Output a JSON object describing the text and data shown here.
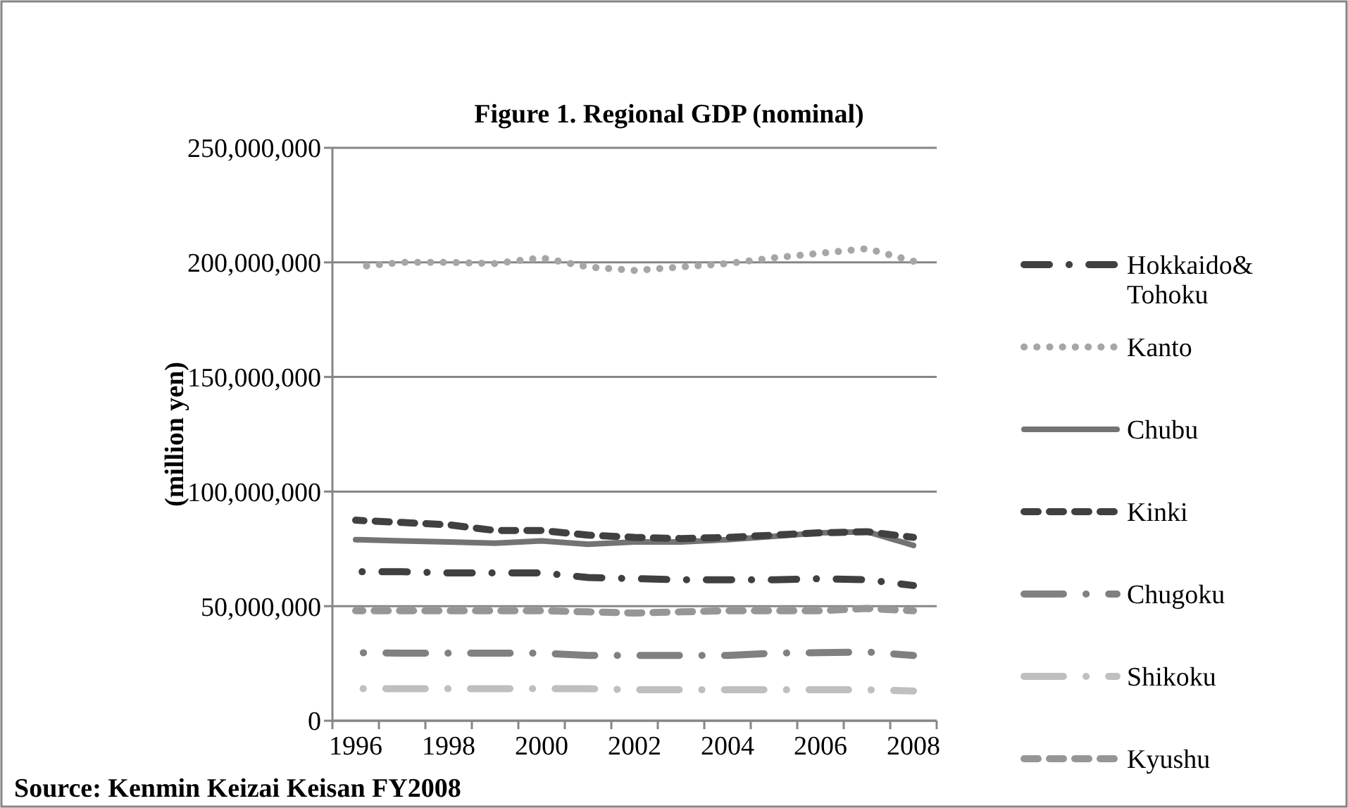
{
  "chart_data": {
    "type": "line",
    "title": "Figure 1. Regional GDP (nominal)",
    "ylabel": "(million yen)",
    "annotations": [
      "Source: Kenmin Keizai Keisan FY2008"
    ],
    "categories": [
      "1996",
      null,
      "1998",
      null,
      "2000",
      null,
      "2002",
      null,
      "2004",
      null,
      "2006",
      null,
      "2008"
    ],
    "ylim": [
      0,
      250000000
    ],
    "yticks": [
      0,
      {
        "value": 50000000,
        "label": "50,000,000"
      },
      {
        "value": 100000000,
        "label": "100,000,000"
      },
      {
        "value": 150000000,
        "label": "150,000,000"
      },
      {
        "value": 200000000,
        "label": "200,000,000"
      },
      {
        "value": 250000000,
        "label": "250,000,000"
      }
    ],
    "grid": "y",
    "legend": "right",
    "marker": "none",
    "series": [
      {
        "name": "Hokkaido& Tohoku",
        "color": "#404040",
        "line_style": "dashdot",
        "values": [
          65000000,
          65000000,
          64500000,
          64500000,
          64500000,
          62500000,
          62000000,
          61500000,
          61500000,
          61500000,
          62000000,
          61500000,
          59000000
        ]
      },
      {
        "name": "Kanto",
        "color": "#a6a6a6",
        "line_style": "dotted",
        "values": [
          198000000,
          200000000,
          200000000,
          199500000,
          202000000,
          198000000,
          196500000,
          198000000,
          199500000,
          202000000,
          204000000,
          206000000,
          200500000
        ]
      },
      {
        "name": "Chubu",
        "color": "#737373",
        "line_style": "solid",
        "values": [
          79000000,
          78500000,
          78000000,
          77500000,
          78500000,
          77000000,
          78000000,
          78000000,
          79000000,
          80500000,
          82000000,
          82500000,
          76500000
        ]
      },
      {
        "name": "Kinki",
        "color": "#404040",
        "line_style": "dashed",
        "values": [
          87500000,
          86500000,
          85500000,
          83000000,
          83000000,
          81000000,
          80000000,
          79500000,
          80000000,
          81000000,
          82000000,
          82500000,
          80000000
        ]
      },
      {
        "name": "Chugoku",
        "color": "#808080",
        "line_style": "longdashdot",
        "values": [
          29700000,
          29500000,
          29500000,
          29500000,
          29500000,
          28500000,
          28500000,
          28500000,
          28500000,
          29500000,
          29700000,
          30000000,
          28500000
        ]
      },
      {
        "name": "Shikoku",
        "color": "#bfbfbf",
        "line_style": "longdashdot",
        "values": [
          14000000,
          14000000,
          14000000,
          14000000,
          14000000,
          14000000,
          13500000,
          13500000,
          13500000,
          13500000,
          13500000,
          13500000,
          13000000
        ]
      },
      {
        "name": "Kyushu",
        "color": "#969696",
        "line_style": "dashed",
        "values": [
          48000000,
          48000000,
          48000000,
          48000000,
          48000000,
          47500000,
          47000000,
          47500000,
          48000000,
          48000000,
          48000000,
          49000000,
          48000000
        ]
      }
    ]
  }
}
